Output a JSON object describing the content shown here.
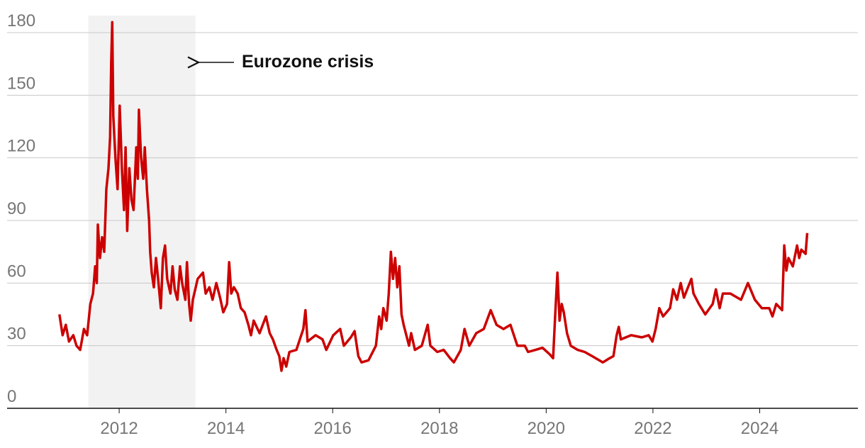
{
  "chart_data": {
    "type": "line",
    "xlim": [
      2009.9,
      2025.84
    ],
    "xticks": [
      2012,
      2014,
      2016,
      2018,
      2020,
      2022,
      2024
    ],
    "ylim": [
      0,
      180
    ],
    "yticks": [
      0,
      30,
      60,
      90,
      120,
      150,
      180
    ],
    "grid": true,
    "annotation": {
      "text": "Eurozone crisis",
      "x_range": [
        2011.42,
        2013.43
      ]
    },
    "series": [
      {
        "color": "#cc0000",
        "x": [
          2010.88,
          2010.94,
          2011.0,
          2011.06,
          2011.14,
          2011.2,
          2011.27,
          2011.34,
          2011.4,
          2011.46,
          2011.51,
          2011.55,
          2011.58,
          2011.6,
          2011.64,
          2011.68,
          2011.72,
          2011.76,
          2011.8,
          2011.83,
          2011.85,
          2011.87,
          2011.89,
          2011.93,
          2011.97,
          2012.01,
          2012.05,
          2012.09,
          2012.12,
          2012.15,
          2012.19,
          2012.23,
          2012.27,
          2012.32,
          2012.35,
          2012.37,
          2012.41,
          2012.45,
          2012.48,
          2012.52,
          2012.56,
          2012.58,
          2012.61,
          2012.65,
          2012.69,
          2012.73,
          2012.78,
          2012.82,
          2012.86,
          2012.9,
          2012.96,
          2013.0,
          2013.04,
          2013.09,
          2013.14,
          2013.18,
          2013.24,
          2013.27,
          2013.31,
          2013.34,
          2013.38,
          2013.47,
          2013.57,
          2013.62,
          2013.69,
          2013.75,
          2013.82,
          2013.89,
          2013.95,
          2014.02,
          2014.06,
          2014.1,
          2014.15,
          2014.22,
          2014.28,
          2014.35,
          2014.42,
          2014.47,
          2014.52,
          2014.63,
          2014.75,
          2014.82,
          2014.88,
          2014.95,
          2015.0,
          2015.04,
          2015.08,
          2015.13,
          2015.19,
          2015.32,
          2015.45,
          2015.49,
          2015.53,
          2015.68,
          2015.81,
          2015.88,
          2016.01,
          2016.14,
          2016.21,
          2016.34,
          2016.41,
          2016.48,
          2016.54,
          2016.67,
          2016.81,
          2016.87,
          2016.91,
          2016.95,
          2017.01,
          2017.05,
          2017.09,
          2017.13,
          2017.17,
          2017.21,
          2017.25,
          2017.29,
          2017.33,
          2017.38,
          2017.43,
          2017.47,
          2017.54,
          2017.67,
          2017.78,
          2017.83,
          2017.96,
          2018.08,
          2018.2,
          2018.27,
          2018.4,
          2018.47,
          2018.56,
          2018.69,
          2018.83,
          2018.96,
          2019.07,
          2019.2,
          2019.33,
          2019.46,
          2019.6,
          2019.66,
          2019.8,
          2019.93,
          2020.06,
          2020.13,
          2020.17,
          2020.21,
          2020.25,
          2020.29,
          2020.33,
          2020.39,
          2020.46,
          2020.59,
          2020.72,
          2020.86,
          2021.06,
          2021.19,
          2021.26,
          2021.32,
          2021.36,
          2021.4,
          2021.59,
          2021.79,
          2021.92,
          2021.99,
          2022.05,
          2022.12,
          2022.19,
          2022.32,
          2022.38,
          2022.45,
          2022.52,
          2022.58,
          2022.72,
          2022.76,
          2022.86,
          2022.98,
          2023.12,
          2023.18,
          2023.25,
          2023.31,
          2023.45,
          2023.65,
          2023.78,
          2023.91,
          2024.04,
          2024.18,
          2024.24,
          2024.31,
          2024.42,
          2024.46,
          2024.5,
          2024.54,
          2024.62,
          2024.7,
          2024.74,
          2024.78,
          2024.86,
          2024.89
        ],
        "values": [
          45,
          35,
          40,
          32,
          35,
          30,
          28,
          38,
          35,
          50,
          55,
          68,
          60,
          88,
          72,
          82,
          75,
          105,
          115,
          130,
          165,
          185,
          140,
          120,
          105,
          145,
          115,
          95,
          125,
          85,
          115,
          100,
          95,
          125,
          110,
          143,
          120,
          110,
          125,
          105,
          90,
          75,
          65,
          58,
          72,
          62,
          48,
          72,
          78,
          62,
          55,
          68,
          57,
          52,
          68,
          60,
          52,
          70,
          50,
          42,
          52,
          62,
          65,
          55,
          58,
          52,
          60,
          53,
          46,
          50,
          70,
          55,
          58,
          55,
          48,
          46,
          40,
          35,
          42,
          36,
          44,
          36,
          33,
          28,
          25,
          18,
          24,
          20,
          27,
          28,
          38,
          47,
          32,
          35,
          33,
          28,
          35,
          38,
          30,
          34,
          37,
          25,
          22,
          23,
          30,
          44,
          38,
          48,
          42,
          55,
          75,
          62,
          72,
          58,
          68,
          45,
          40,
          35,
          30,
          36,
          28,
          30,
          40,
          30,
          27,
          28,
          24,
          22,
          28,
          38,
          30,
          36,
          38,
          47,
          40,
          38,
          40,
          30,
          30,
          27,
          28,
          29,
          26,
          24,
          45,
          65,
          42,
          50,
          46,
          36,
          30,
          28,
          27,
          25,
          22,
          24,
          25,
          35,
          39,
          33,
          35,
          34,
          35,
          32,
          38,
          48,
          44,
          48,
          57,
          52,
          60,
          53,
          62,
          55,
          50,
          45,
          50,
          57,
          48,
          55,
          55,
          52,
          60,
          52,
          48,
          48,
          44,
          50,
          47,
          78,
          66,
          72,
          68,
          78,
          72,
          76,
          74,
          84
        ]
      }
    ]
  }
}
